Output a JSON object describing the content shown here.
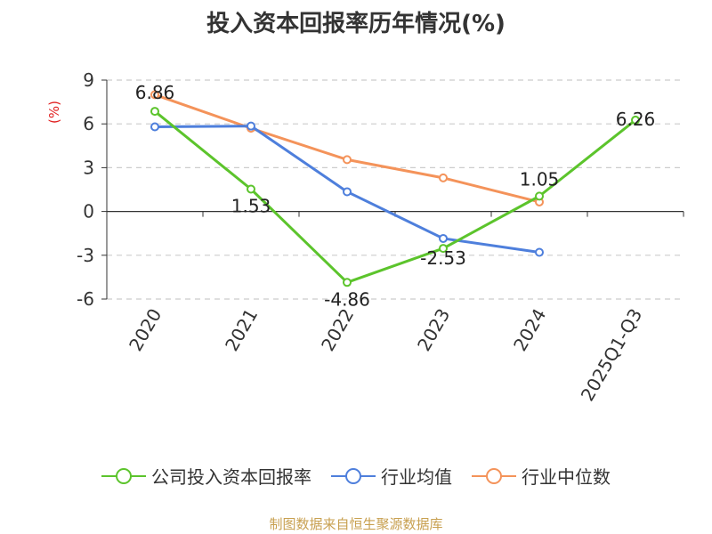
{
  "chart_data": {
    "type": "line",
    "title": "投入资本回报率历年情况(%)",
    "ylabel": "(%)",
    "categories": [
      "2020",
      "2021",
      "2022",
      "2023",
      "2024",
      "2025Q1-Q3"
    ],
    "ylim": [
      -6,
      9
    ],
    "yticks": [
      9,
      6,
      3,
      0,
      -3,
      -6
    ],
    "grid": true,
    "legend_position": "bottom",
    "series": [
      {
        "name": "公司投入资本回报率",
        "color": "#5cc42c",
        "values": [
          6.86,
          1.53,
          -4.86,
          -2.53,
          1.05,
          6.26
        ],
        "labels": [
          "6.86",
          "1.53",
          "-4.86",
          "-2.53",
          "1.05",
          "6.26"
        ]
      },
      {
        "name": "行业均值",
        "color": "#4e7fdc",
        "values": [
          5.8,
          5.85,
          1.35,
          -1.85,
          -2.8,
          null
        ]
      },
      {
        "name": "行业中位数",
        "color": "#f4935a",
        "values": [
          8.0,
          5.7,
          3.55,
          2.3,
          0.65,
          null
        ]
      }
    ]
  },
  "footer": {
    "source": "制图数据来自恒生聚源数据库"
  }
}
